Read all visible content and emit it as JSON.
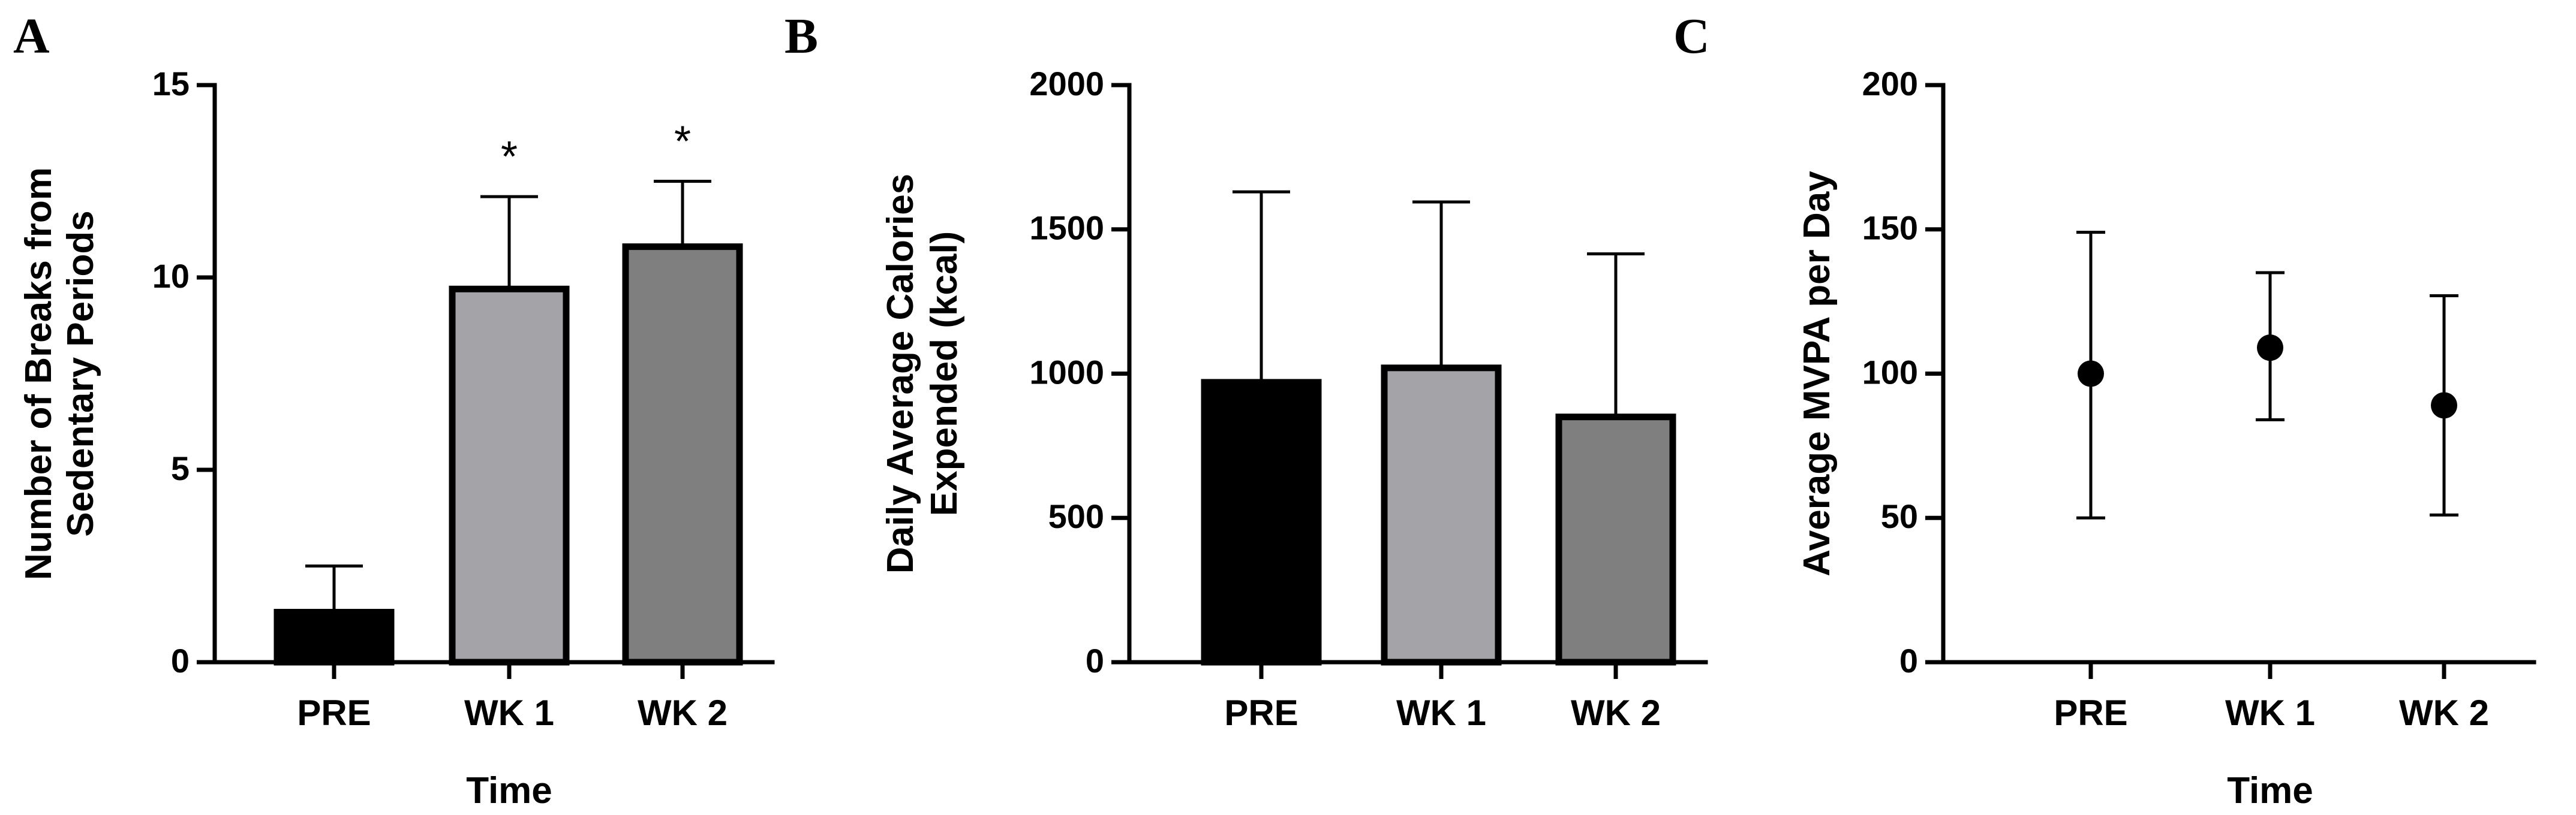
{
  "chart_data": [
    {
      "panel": "A",
      "type": "bar",
      "categories": [
        "PRE",
        "WK 1",
        "WK 2"
      ],
      "values": [
        1.3,
        9.7,
        10.8
      ],
      "error_upper": [
        2.5,
        12.1,
        12.5
      ],
      "bar_colors": [
        "#000000",
        "#a3a3a8",
        "#7f7f7f"
      ],
      "annotations": [
        "",
        "*",
        "*"
      ],
      "xlabel": "Time",
      "ylabel": [
        "Number of Breaks from",
        "Sedentary Periods"
      ],
      "ylim": [
        0,
        15
      ],
      "yticks": [
        0,
        5,
        10,
        15
      ],
      "ytick_labels": [
        "0",
        "5",
        "10",
        "15"
      ]
    },
    {
      "panel": "B",
      "type": "bar",
      "categories": [
        "PRE",
        "WK 1",
        "WK 2"
      ],
      "values": [
        970,
        1020,
        850
      ],
      "error_upper": [
        1630,
        1595,
        1415
      ],
      "bar_colors": [
        "#000000",
        "#a3a3a8",
        "#7f7f7f"
      ],
      "annotations": [
        "",
        "",
        ""
      ],
      "xlabel": "",
      "ylabel": [
        "Daily Average Calories",
        "Expended (kcal)"
      ],
      "ylim": [
        0,
        2000
      ],
      "yticks": [
        0,
        500,
        1000,
        1500,
        2000
      ],
      "ytick_labels": [
        "0",
        "500",
        "1000",
        "1500",
        "2000"
      ]
    },
    {
      "panel": "C",
      "type": "scatter",
      "categories": [
        "PRE",
        "WK 1",
        "WK 2"
      ],
      "values": [
        100,
        109,
        89
      ],
      "error_upper": [
        149,
        135,
        127
      ],
      "error_lower": [
        50,
        84,
        51
      ],
      "xlabel": "Time",
      "ylabel": [
        "Average MVPA per Day"
      ],
      "ylim": [
        0,
        200
      ],
      "yticks": [
        0,
        50,
        100,
        150,
        200
      ],
      "ytick_labels": [
        "0",
        "50",
        "100",
        "150",
        "200"
      ]
    }
  ]
}
